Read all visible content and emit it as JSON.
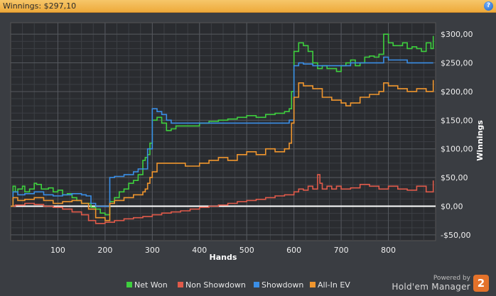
{
  "header": {
    "title": "Winnings: $297,10",
    "help_icon": "?"
  },
  "brand": {
    "powered_by": "Powered by",
    "name": "Hold'em Manager",
    "logo_number": "2"
  },
  "chart_data": {
    "type": "line",
    "title": "",
    "xlabel": "Hands",
    "ylabel": "Winnings",
    "xlim": [
      0,
      900
    ],
    "ylim": [
      -60,
      320
    ],
    "x_ticks": [
      100,
      200,
      300,
      400,
      500,
      600,
      700,
      800
    ],
    "y_ticks": [
      300,
      250,
      200,
      150,
      100,
      50,
      0,
      -50
    ],
    "y_tick_labels": [
      "$300,00",
      "$250,00",
      "$200,00",
      "$150,00",
      "$100,00",
      "$50,00",
      "$0,00",
      "-$50,00"
    ],
    "grid": true,
    "legend_position": "bottom",
    "series": [
      {
        "name": "Net Won",
        "color": "#3ecf3e",
        "x": [
          0,
          5,
          10,
          15,
          25,
          30,
          40,
          50,
          55,
          65,
          80,
          90,
          100,
          110,
          120,
          130,
          140,
          150,
          160,
          170,
          180,
          190,
          200,
          210,
          220,
          230,
          240,
          250,
          260,
          270,
          280,
          285,
          290,
          295,
          300,
          310,
          320,
          330,
          340,
          350,
          360,
          380,
          400,
          420,
          440,
          460,
          480,
          500,
          520,
          540,
          560,
          580,
          590,
          595,
          600,
          610,
          620,
          630,
          640,
          650,
          660,
          670,
          680,
          690,
          700,
          710,
          720,
          730,
          740,
          750,
          760,
          770,
          780,
          790,
          800,
          810,
          820,
          830,
          840,
          850,
          860,
          870,
          880,
          890,
          895
        ],
        "values": [
          0,
          35,
          25,
          30,
          35,
          25,
          30,
          40,
          38,
          30,
          32,
          25,
          28,
          20,
          22,
          15,
          10,
          5,
          5,
          -2,
          -5,
          -12,
          -15,
          8,
          15,
          25,
          30,
          40,
          45,
          55,
          80,
          85,
          90,
          110,
          150,
          155,
          145,
          132,
          135,
          140,
          140,
          140,
          145,
          148,
          150,
          152,
          155,
          158,
          155,
          160,
          162,
          165,
          170,
          200,
          270,
          285,
          280,
          270,
          250,
          240,
          245,
          240,
          240,
          235,
          245,
          250,
          255,
          245,
          250,
          260,
          262,
          260,
          265,
          300,
          285,
          280,
          280,
          285,
          275,
          278,
          275,
          270,
          285,
          275,
          297
        ]
      },
      {
        "name": "Non Showdown",
        "color": "#e05a4a",
        "x": [
          0,
          10,
          30,
          50,
          70,
          90,
          110,
          130,
          150,
          165,
          180,
          200,
          220,
          240,
          260,
          280,
          300,
          320,
          340,
          360,
          380,
          400,
          420,
          440,
          460,
          480,
          500,
          520,
          540,
          560,
          580,
          600,
          610,
          620,
          630,
          640,
          650,
          655,
          660,
          670,
          680,
          690,
          700,
          720,
          740,
          760,
          780,
          800,
          820,
          840,
          860,
          880,
          895
        ],
        "values": [
          0,
          2,
          5,
          3,
          0,
          -2,
          -5,
          -10,
          -15,
          -25,
          -30,
          -28,
          -25,
          -22,
          -20,
          -18,
          -15,
          -12,
          -10,
          -8,
          -5,
          -2,
          0,
          2,
          5,
          8,
          10,
          12,
          15,
          18,
          20,
          25,
          30,
          28,
          35,
          30,
          55,
          40,
          30,
          35,
          30,
          35,
          30,
          32,
          38,
          35,
          30,
          35,
          30,
          28,
          35,
          25,
          45
        ]
      },
      {
        "name": "Showdown",
        "color": "#3a8ee6",
        "x": [
          0,
          5,
          15,
          30,
          50,
          70,
          90,
          110,
          130,
          150,
          160,
          170,
          180,
          200,
          210,
          220,
          240,
          260,
          270,
          280,
          290,
          300,
          310,
          320,
          330,
          340,
          360,
          400,
          450,
          500,
          540,
          580,
          590,
          600,
          610,
          620,
          640,
          660,
          680,
          700,
          720,
          740,
          760,
          780,
          790,
          800,
          820,
          840,
          860,
          880,
          895
        ],
        "values": [
          0,
          25,
          20,
          22,
          25,
          20,
          18,
          20,
          22,
          20,
          18,
          5,
          0,
          0,
          50,
          52,
          55,
          60,
          65,
          65,
          100,
          170,
          165,
          160,
          150,
          145,
          145,
          145,
          145,
          145,
          145,
          145,
          150,
          245,
          250,
          248,
          245,
          245,
          245,
          245,
          250,
          250,
          250,
          250,
          260,
          255,
          255,
          250,
          250,
          250,
          250
        ]
      },
      {
        "name": "All-In EV",
        "color": "#f0962e",
        "x": [
          0,
          5,
          15,
          30,
          50,
          70,
          90,
          110,
          130,
          150,
          165,
          180,
          200,
          210,
          220,
          240,
          260,
          280,
          285,
          290,
          295,
          300,
          310,
          330,
          350,
          370,
          400,
          420,
          440,
          460,
          480,
          500,
          520,
          540,
          560,
          580,
          590,
          595,
          600,
          610,
          620,
          640,
          660,
          680,
          700,
          710,
          720,
          740,
          760,
          780,
          790,
          800,
          820,
          840,
          860,
          880,
          895
        ],
        "values": [
          0,
          15,
          10,
          12,
          15,
          10,
          5,
          8,
          10,
          5,
          -5,
          -20,
          -25,
          5,
          10,
          15,
          20,
          25,
          30,
          40,
          50,
          60,
          75,
          75,
          75,
          70,
          75,
          80,
          85,
          80,
          90,
          95,
          90,
          100,
          95,
          100,
          110,
          145,
          190,
          215,
          210,
          205,
          190,
          185,
          180,
          175,
          180,
          190,
          195,
          200,
          215,
          210,
          205,
          200,
          205,
          200,
          220
        ]
      }
    ]
  }
}
